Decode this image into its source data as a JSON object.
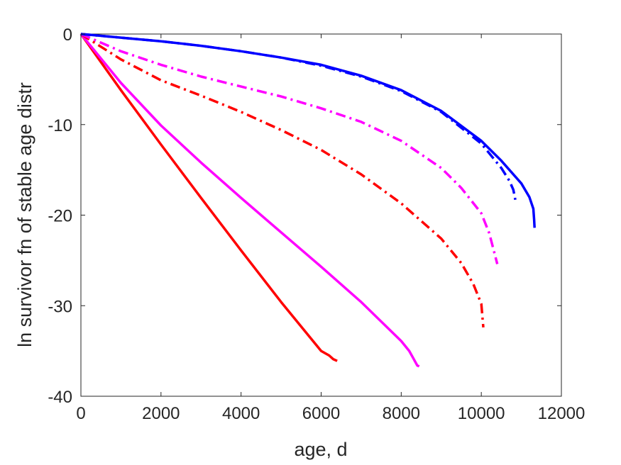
{
  "chart_data": {
    "type": "line",
    "title": "",
    "xlabel": "age, d",
    "ylabel": "ln survivor fn of stable age distr",
    "xlim": [
      0,
      12000
    ],
    "ylim": [
      -40,
      0
    ],
    "xticks": [
      0,
      2000,
      4000,
      6000,
      8000,
      10000,
      12000
    ],
    "yticks": [
      0,
      -10,
      -20,
      -30,
      -40
    ],
    "xtick_labels": [
      "0",
      "2000",
      "4000",
      "6000",
      "8000",
      "10000",
      "12000"
    ],
    "ytick_labels": [
      "0",
      "-10",
      "-20",
      "-30",
      "-40"
    ],
    "grid": false,
    "legend": "none",
    "series": [
      {
        "color": "#ff0000",
        "style": "solid",
        "x": [
          0,
          1000,
          2000,
          3000,
          4000,
          5000,
          6000,
          6200,
          6300,
          6400
        ],
        "y": [
          0,
          -6.2,
          -12.2,
          -18.1,
          -23.9,
          -29.6,
          -35.0,
          -35.5,
          -35.9,
          -36.1
        ]
      },
      {
        "color": "#ff00ff",
        "style": "solid",
        "x": [
          0,
          1000,
          2000,
          3000,
          4000,
          5000,
          6000,
          7000,
          8000,
          8200,
          8300,
          8400,
          8450
        ],
        "y": [
          0,
          -5.4,
          -10.1,
          -14.2,
          -18.1,
          -21.9,
          -25.7,
          -29.6,
          -33.9,
          -35.0,
          -35.8,
          -36.6,
          -36.7
        ]
      },
      {
        "color": "#ff0000",
        "style": "dashdot",
        "x": [
          0,
          1000,
          2000,
          3000,
          4000,
          5000,
          6000,
          7000,
          8000,
          9000,
          9500,
          9800,
          10000,
          10050
        ],
        "y": [
          0,
          -2.8,
          -5.1,
          -6.8,
          -8.6,
          -10.6,
          -12.8,
          -15.5,
          -18.7,
          -22.6,
          -25.3,
          -27.6,
          -29.8,
          -32.4
        ]
      },
      {
        "color": "#ff00ff",
        "style": "dashdot",
        "x": [
          0,
          1000,
          2000,
          3000,
          4000,
          5000,
          6000,
          7000,
          8000,
          9000,
          9500,
          10000,
          10200,
          10400
        ],
        "y": [
          0,
          -1.9,
          -3.4,
          -4.7,
          -5.8,
          -6.9,
          -8.2,
          -9.7,
          -11.8,
          -14.8,
          -17.0,
          -19.8,
          -22.0,
          -25.4
        ]
      },
      {
        "color": "#0000ff",
        "style": "dashdot",
        "x": [
          0,
          1000,
          2000,
          3000,
          4000,
          5000,
          6000,
          7000,
          8000,
          9000,
          10000,
          10500,
          10700,
          10800,
          10850
        ],
        "y": [
          0,
          -0.4,
          -0.8,
          -1.3,
          -1.9,
          -2.6,
          -3.5,
          -4.7,
          -6.3,
          -8.6,
          -12.1,
          -14.8,
          -16.2,
          -17.2,
          -18.3
        ]
      },
      {
        "color": "#0000ff",
        "style": "solid",
        "x": [
          0,
          1000,
          2000,
          3000,
          4000,
          5000,
          6000,
          7000,
          8000,
          9000,
          10000,
          10500,
          11000,
          11200,
          11300,
          11320,
          11330
        ],
        "y": [
          0,
          -0.4,
          -0.8,
          -1.3,
          -1.9,
          -2.6,
          -3.4,
          -4.6,
          -6.2,
          -8.5,
          -11.8,
          -14.0,
          -16.5,
          -18.0,
          -19.3,
          -20.5,
          -21.4
        ]
      }
    ]
  }
}
